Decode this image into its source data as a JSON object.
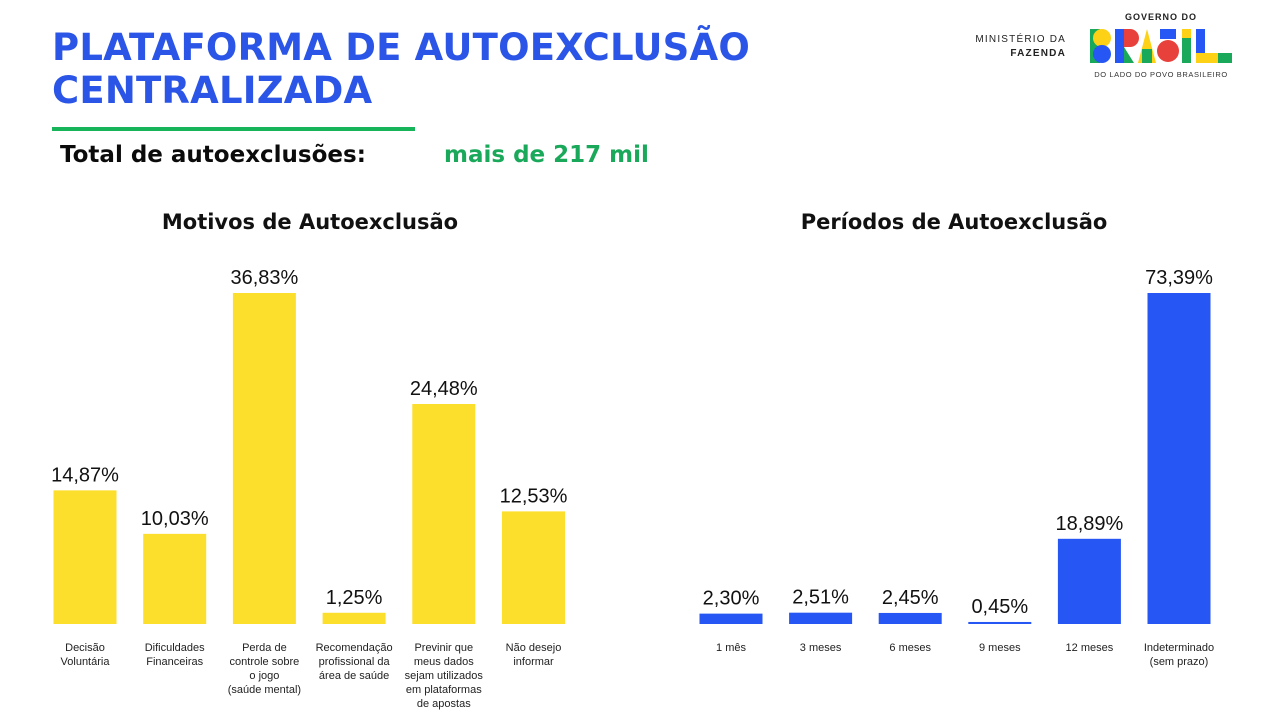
{
  "header": {
    "title_line1": "PLATAFORMA DE AUTOEXCLUSÃO",
    "title_line2": "CENTRALIZADA",
    "total_label": "Total de autoexclusões:",
    "total_value": "mais de 217 mil"
  },
  "branding": {
    "ministry_line1": "MINISTÉRIO DA",
    "ministry_line2": "FAZENDA",
    "gov_top": "GOVERNO DO",
    "gov_word": "BRASIL",
    "gov_tagline": "DO LADO DO POVO BRASILEIRO"
  },
  "colors": {
    "title_blue": "#2B55E6",
    "accent_green": "#1AA85A",
    "bar_yellow": "#FCDF2D",
    "bar_blue": "#2656F3"
  },
  "chart_data": [
    {
      "type": "bar",
      "title": "Motivos de Autoexclusão",
      "categories": [
        "Decisão Voluntária",
        "Dificuldades Financeiras",
        "Perda de controle sobre o jogo (saúde mental)",
        "Recomendação profissional da área de saúde",
        "Previnir que meus dados sejam utilizados em plataformas de apostas",
        "Não desejo informar"
      ],
      "category_lines": [
        [
          "Decisão",
          "Voluntária"
        ],
        [
          "Dificuldades",
          "Financeiras"
        ],
        [
          "Perda de",
          "controle sobre",
          "o jogo",
          "(saúde mental)"
        ],
        [
          "Recomendação",
          "profissional da",
          "área de saúde"
        ],
        [
          "Previnir que",
          "meus dados",
          "sejam utilizados",
          "em plataformas",
          "de apostas"
        ],
        [
          "Não desejo",
          "informar"
        ]
      ],
      "values": [
        14.87,
        10.03,
        36.83,
        1.25,
        24.48,
        12.53
      ],
      "value_labels": [
        "14,87%",
        "10,03%",
        "36,83%",
        "1,25%",
        "24,48%",
        "12,53%"
      ],
      "ylim": [
        0,
        36.83
      ],
      "color": "#FCDF2D",
      "xlabel": "",
      "ylabel": ""
    },
    {
      "type": "bar",
      "title": "Períodos de Autoexclusão",
      "categories": [
        "1 mês",
        "3 meses",
        "6 meses",
        "9 meses",
        "12 meses",
        "Indeterminado (sem prazo)"
      ],
      "category_lines": [
        [
          "1 mês"
        ],
        [
          "3 meses"
        ],
        [
          "6 meses"
        ],
        [
          "9 meses"
        ],
        [
          "12 meses"
        ],
        [
          "Indeterminado",
          "(sem prazo)"
        ]
      ],
      "values": [
        2.3,
        2.51,
        2.45,
        0.45,
        18.89,
        73.39
      ],
      "value_labels": [
        "2,30%",
        "2,51%",
        "2,45%",
        "0,45%",
        "18,89%",
        "73,39%"
      ],
      "ylim": [
        0,
        73.39
      ],
      "color": "#2656F3",
      "xlabel": "",
      "ylabel": ""
    }
  ]
}
